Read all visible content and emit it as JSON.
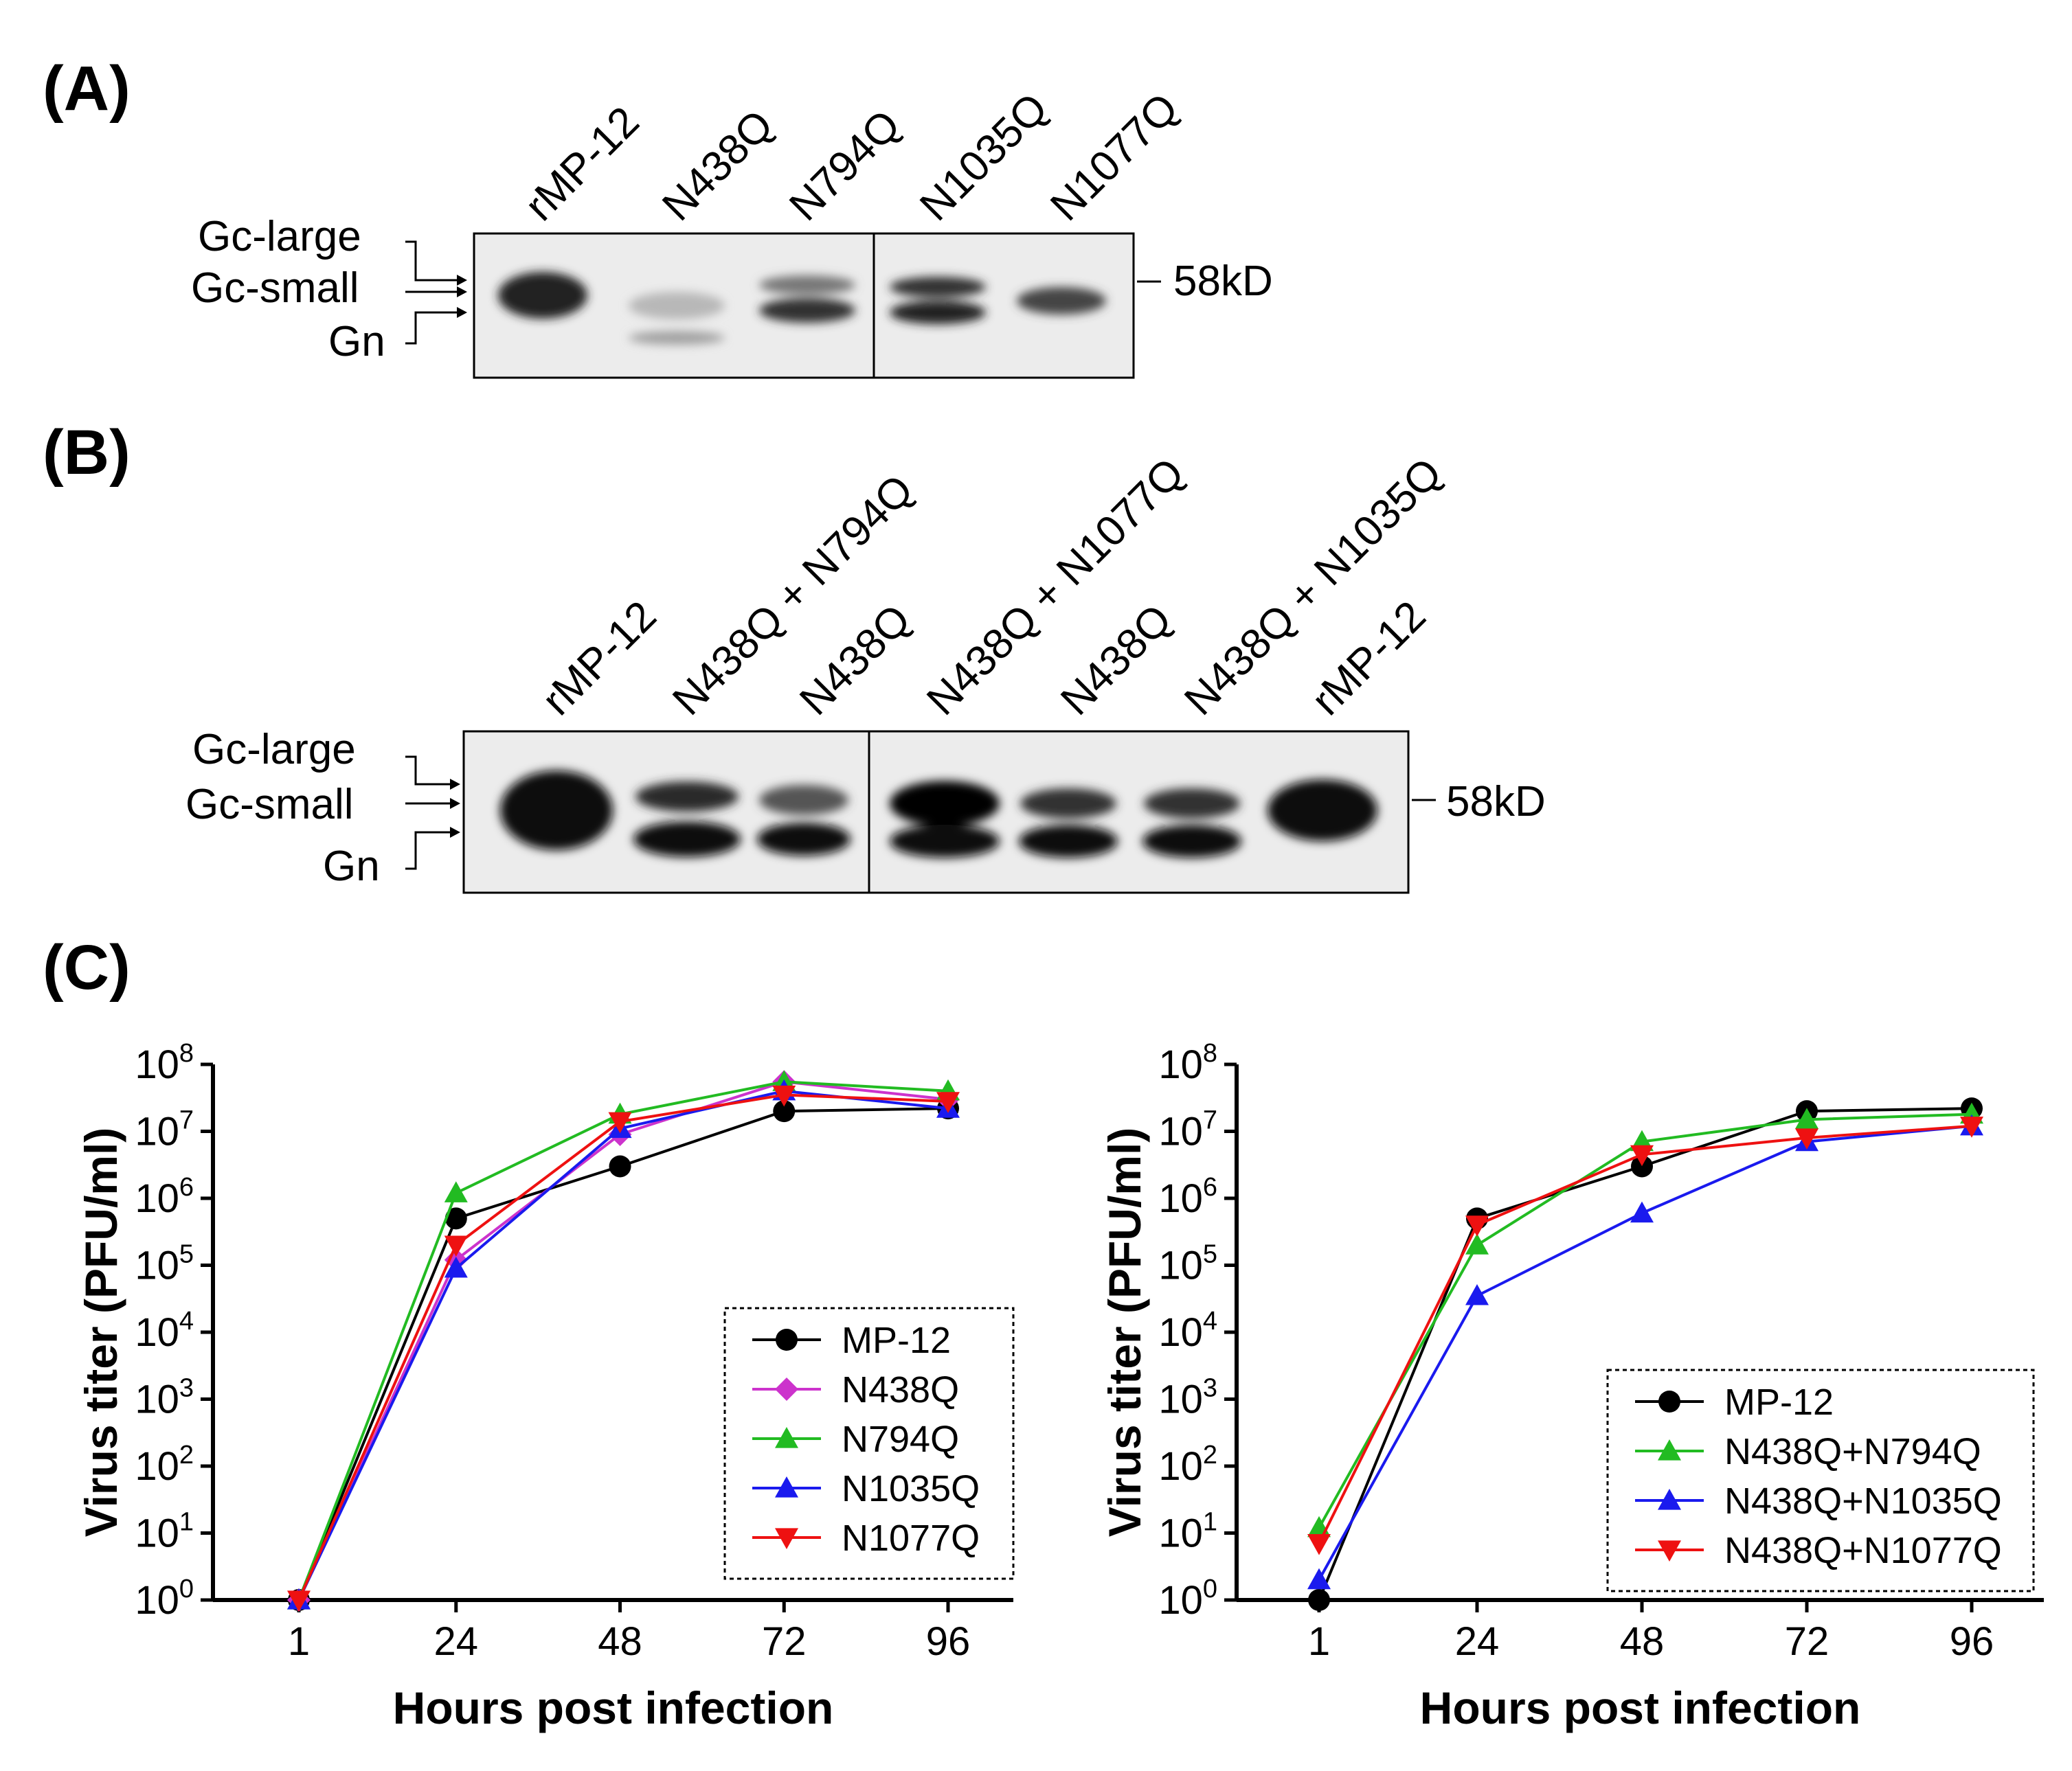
{
  "panels": {
    "A": {
      "label": "(A)",
      "lanes": [
        "rMP-12",
        "N438Q",
        "N794Q",
        "N1035Q",
        "N1077Q"
      ],
      "bands": [
        "Gc-large",
        "Gc-small",
        "Gn"
      ],
      "marker": "58kD"
    },
    "B": {
      "label": "(B)",
      "lanes": [
        "rMP-12",
        "N438Q + N794Q",
        "N438Q",
        "N438Q + N1077Q",
        "N438Q",
        "N438Q + N1035Q",
        "rMP-12"
      ],
      "bands": [
        "Gc-large",
        "Gc-small",
        "Gn"
      ],
      "marker": "58kD"
    },
    "C": {
      "label": "(C)"
    }
  },
  "chart_data": [
    {
      "type": "line",
      "ylabel": "Virus titer (PFU/ml)",
      "xlabel": "Hours post infection",
      "x": [
        1,
        24,
        48,
        72,
        96
      ],
      "xticks": [
        "1",
        "24",
        "48",
        "72",
        "96"
      ],
      "yscale": "log",
      "ylim": [
        1,
        100000000
      ],
      "yticks": [
        {
          "base": "10",
          "exp": "0"
        },
        {
          "base": "10",
          "exp": "1"
        },
        {
          "base": "10",
          "exp": "2"
        },
        {
          "base": "10",
          "exp": "3"
        },
        {
          "base": "10",
          "exp": "4"
        },
        {
          "base": "10",
          "exp": "5"
        },
        {
          "base": "10",
          "exp": "6"
        },
        {
          "base": "10",
          "exp": "7"
        },
        {
          "base": "10",
          "exp": "8"
        }
      ],
      "legend_position": "bottom-right",
      "series": [
        {
          "name": "MP-12",
          "color": "#000000",
          "marker": "circle",
          "values": [
            1,
            500000,
            3000000,
            20000000,
            22000000
          ]
        },
        {
          "name": "N438Q",
          "color": "#cc33cc",
          "marker": "diamond",
          "values": [
            1,
            120000,
            9000000,
            55000000,
            30000000
          ]
        },
        {
          "name": "N794Q",
          "color": "#22bb22",
          "marker": "triangle-up",
          "values": [
            1,
            1200000,
            18000000,
            55000000,
            40000000
          ]
        },
        {
          "name": "N1035Q",
          "color": "#1a1aee",
          "marker": "triangle-up",
          "values": [
            1,
            90000,
            11000000,
            40000000,
            22000000
          ]
        },
        {
          "name": "N1077Q",
          "color": "#ee1111",
          "marker": "triangle-down",
          "values": [
            1,
            200000,
            14000000,
            35000000,
            28000000
          ]
        }
      ]
    },
    {
      "type": "line",
      "ylabel": "Virus titer (PFU/ml)",
      "xlabel": "Hours post infection",
      "x": [
        1,
        24,
        48,
        72,
        96
      ],
      "xticks": [
        "1",
        "24",
        "48",
        "72",
        "96"
      ],
      "yscale": "log",
      "ylim": [
        1,
        100000000
      ],
      "yticks": [
        {
          "base": "10",
          "exp": "0"
        },
        {
          "base": "10",
          "exp": "1"
        },
        {
          "base": "10",
          "exp": "2"
        },
        {
          "base": "10",
          "exp": "3"
        },
        {
          "base": "10",
          "exp": "4"
        },
        {
          "base": "10",
          "exp": "5"
        },
        {
          "base": "10",
          "exp": "6"
        },
        {
          "base": "10",
          "exp": "7"
        },
        {
          "base": "10",
          "exp": "8"
        }
      ],
      "legend_position": "bottom-right",
      "series": [
        {
          "name": "MP-12",
          "color": "#000000",
          "marker": "circle",
          "values": [
            1,
            500000,
            3000000,
            20000000,
            22000000
          ]
        },
        {
          "name": "N438Q+N794Q",
          "color": "#22bb22",
          "marker": "triangle-up",
          "values": [
            12,
            200000,
            7000000,
            15000000,
            18000000
          ]
        },
        {
          "name": "N438Q+N1035Q",
          "color": "#1a1aee",
          "marker": "triangle-up",
          "values": [
            2,
            35000,
            600000,
            7000000,
            12000000
          ]
        },
        {
          "name": "N438Q+N1077Q",
          "color": "#ee1111",
          "marker": "triangle-down",
          "values": [
            7,
            400000,
            4500000,
            8000000,
            12000000
          ]
        }
      ]
    }
  ]
}
